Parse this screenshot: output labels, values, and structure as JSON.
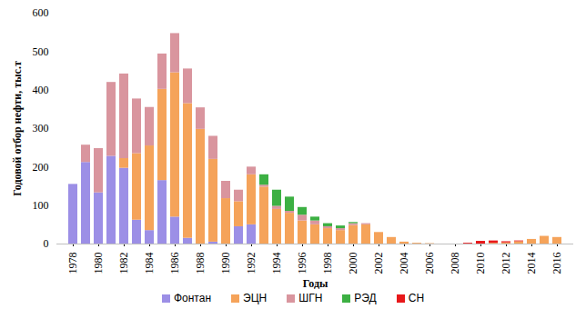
{
  "chart_data": {
    "type": "bar",
    "stacked": true,
    "x_label": "Годы",
    "y_label": "Годовой отбор нефти, тыс.т",
    "categories": [
      "1978",
      null,
      "1980",
      null,
      "1982",
      null,
      "1984",
      null,
      "1986",
      null,
      "1988",
      null,
      "1990",
      null,
      "1992",
      null,
      "1994",
      null,
      "1996",
      null,
      "1998",
      null,
      "2000",
      null,
      "2002",
      null,
      "2004",
      null,
      "2006",
      null,
      "2008",
      null,
      "2010",
      null,
      "2012",
      null,
      "2014",
      null,
      "2016"
    ],
    "series": [
      {
        "name": "Фонтан",
        "color": "#9c8fe6",
        "values": [
          155,
          212,
          133,
          228,
          197,
          62,
          35,
          165,
          70,
          15,
          0,
          5,
          0,
          45,
          50,
          0,
          0,
          0,
          0,
          0,
          0,
          0,
          0,
          0,
          0,
          0,
          0,
          0,
          0,
          0,
          0,
          0,
          0,
          0,
          0,
          0,
          0,
          0,
          0
        ]
      },
      {
        "name": "ЭЦН",
        "color": "#f5a35a",
        "values": [
          0,
          0,
          0,
          0,
          25,
          173,
          220,
          237,
          375,
          350,
          298,
          215,
          118,
          65,
          130,
          148,
          90,
          80,
          60,
          50,
          40,
          35,
          48,
          50,
          30,
          17,
          5,
          2,
          1,
          0,
          0,
          0,
          0,
          2,
          3,
          6,
          12,
          20,
          17
        ]
      },
      {
        "name": "ШГН",
        "color": "#d9959e",
        "values": [
          0,
          45,
          115,
          192,
          220,
          142,
          100,
          92,
          102,
          90,
          56,
          60,
          45,
          30,
          20,
          5,
          8,
          5,
          15,
          10,
          5,
          5,
          5,
          3,
          0,
          0,
          0,
          0,
          0,
          0,
          0,
          0,
          0,
          0,
          0,
          0,
          0,
          0,
          0
        ]
      },
      {
        "name": "РЭД",
        "color": "#3cb043",
        "values": [
          0,
          0,
          0,
          0,
          0,
          0,
          0,
          0,
          0,
          0,
          0,
          0,
          0,
          0,
          0,
          27,
          42,
          37,
          20,
          10,
          8,
          7,
          3,
          0,
          0,
          0,
          0,
          0,
          0,
          0,
          0,
          0,
          0,
          0,
          0,
          0,
          0,
          0,
          0
        ]
      },
      {
        "name": "СН",
        "color": "#e8181a",
        "values": [
          0,
          0,
          0,
          0,
          0,
          0,
          0,
          0,
          0,
          0,
          0,
          0,
          0,
          0,
          0,
          0,
          0,
          0,
          0,
          0,
          0,
          0,
          0,
          0,
          0,
          0,
          0,
          0,
          0,
          0,
          0,
          2,
          7,
          6,
          3,
          2,
          0,
          0,
          0
        ]
      }
    ],
    "ylim": [
      0,
      600
    ],
    "yticks": [
      0,
      100,
      200,
      300,
      400,
      500,
      600
    ],
    "grid": false,
    "legend": "bottom"
  }
}
